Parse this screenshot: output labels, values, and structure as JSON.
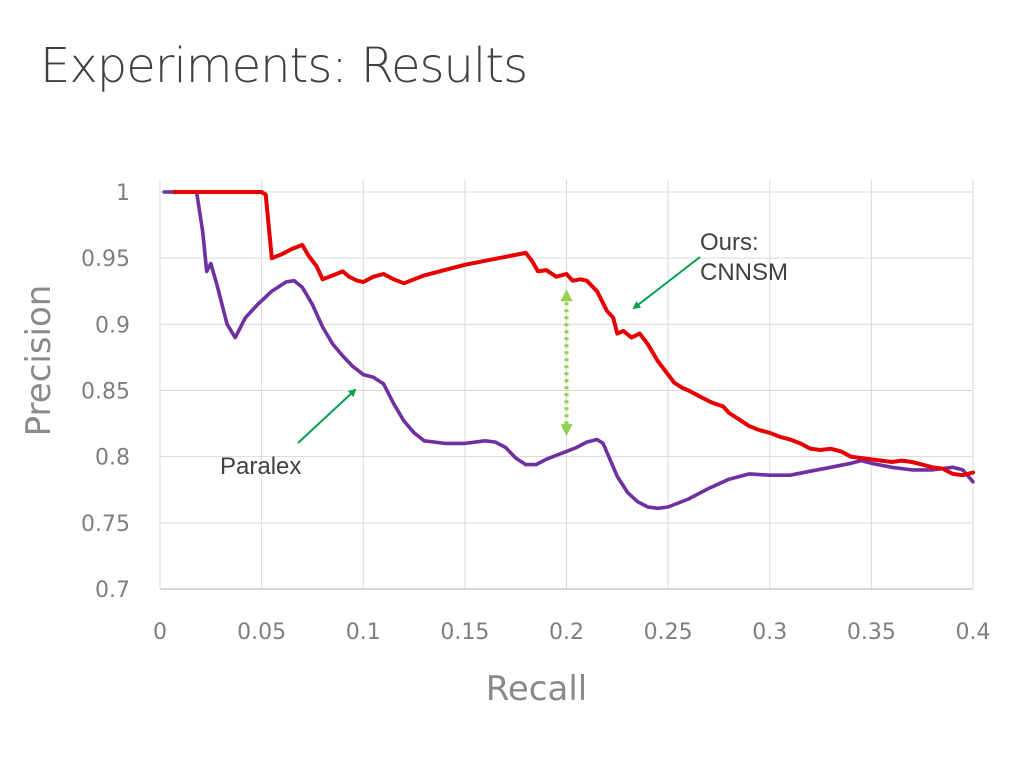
{
  "slide": {
    "title": "Experiments: Results"
  },
  "chart_data": {
    "type": "line",
    "title": "",
    "xlabel": "Recall",
    "ylabel": "Precision",
    "xlim": [
      0,
      0.4
    ],
    "ylim": [
      0.7,
      1.0
    ],
    "xticks": [
      "0",
      "0.05",
      "0.1",
      "0.15",
      "0.2",
      "0.25",
      "0.3",
      "0.35",
      "0.4"
    ],
    "yticks": [
      "0.7",
      "0.75",
      "0.8",
      "0.85",
      "0.9",
      "0.95",
      "1"
    ],
    "grid": true,
    "legend": "none",
    "colors": {
      "ours": "#e60000",
      "paralex": "#7030a0",
      "gap_arrow": "#92d050",
      "annotation_arrow": "#00a050",
      "grid": "#d9d9d9"
    },
    "series": [
      {
        "key": "ours",
        "x": [
          0.007,
          0.02,
          0.05,
          0.052,
          0.055,
          0.06,
          0.065,
          0.07,
          0.073,
          0.077,
          0.08,
          0.085,
          0.09,
          0.093,
          0.097,
          0.1,
          0.105,
          0.11,
          0.115,
          0.12,
          0.125,
          0.13,
          0.14,
          0.15,
          0.16,
          0.17,
          0.18,
          0.183,
          0.186,
          0.19,
          0.195,
          0.2,
          0.203,
          0.207,
          0.21,
          0.215,
          0.22,
          0.223,
          0.225,
          0.228,
          0.232,
          0.236,
          0.24,
          0.245,
          0.25,
          0.253,
          0.257,
          0.26,
          0.265,
          0.27,
          0.273,
          0.277,
          0.28,
          0.285,
          0.29,
          0.295,
          0.3,
          0.305,
          0.31,
          0.315,
          0.32,
          0.325,
          0.33,
          0.335,
          0.34,
          0.345,
          0.35,
          0.355,
          0.36,
          0.365,
          0.37,
          0.375,
          0.38,
          0.385,
          0.39,
          0.395,
          0.4
        ],
        "y": [
          1.0,
          1.0,
          1.0,
          0.998,
          0.95,
          0.953,
          0.957,
          0.96,
          0.952,
          0.944,
          0.934,
          0.937,
          0.94,
          0.936,
          0.933,
          0.932,
          0.936,
          0.938,
          0.934,
          0.931,
          0.934,
          0.937,
          0.941,
          0.945,
          0.948,
          0.951,
          0.954,
          0.948,
          0.94,
          0.941,
          0.936,
          0.938,
          0.933,
          0.934,
          0.933,
          0.925,
          0.91,
          0.905,
          0.893,
          0.895,
          0.89,
          0.893,
          0.885,
          0.872,
          0.862,
          0.856,
          0.852,
          0.85,
          0.846,
          0.842,
          0.84,
          0.838,
          0.833,
          0.828,
          0.823,
          0.82,
          0.818,
          0.815,
          0.813,
          0.81,
          0.806,
          0.805,
          0.806,
          0.804,
          0.8,
          0.799,
          0.798,
          0.797,
          0.796,
          0.797,
          0.796,
          0.794,
          0.792,
          0.791,
          0.787,
          0.786,
          0.788
        ]
      },
      {
        "key": "paralex",
        "x": [
          0.002,
          0.018,
          0.021,
          0.023,
          0.025,
          0.028,
          0.033,
          0.037,
          0.042,
          0.048,
          0.055,
          0.062,
          0.066,
          0.07,
          0.075,
          0.08,
          0.085,
          0.09,
          0.095,
          0.1,
          0.105,
          0.11,
          0.115,
          0.12,
          0.125,
          0.13,
          0.14,
          0.15,
          0.16,
          0.165,
          0.17,
          0.175,
          0.18,
          0.185,
          0.19,
          0.195,
          0.2,
          0.205,
          0.21,
          0.215,
          0.218,
          0.22,
          0.225,
          0.23,
          0.235,
          0.24,
          0.245,
          0.25,
          0.26,
          0.27,
          0.28,
          0.29,
          0.3,
          0.31,
          0.32,
          0.33,
          0.34,
          0.345,
          0.35,
          0.36,
          0.37,
          0.38,
          0.39,
          0.395,
          0.4
        ],
        "y": [
          1.0,
          1.0,
          0.97,
          0.94,
          0.946,
          0.93,
          0.9,
          0.89,
          0.905,
          0.915,
          0.925,
          0.932,
          0.933,
          0.928,
          0.915,
          0.898,
          0.885,
          0.876,
          0.868,
          0.862,
          0.86,
          0.855,
          0.84,
          0.827,
          0.818,
          0.812,
          0.81,
          0.81,
          0.812,
          0.811,
          0.807,
          0.799,
          0.794,
          0.794,
          0.798,
          0.801,
          0.804,
          0.807,
          0.811,
          0.813,
          0.81,
          0.803,
          0.785,
          0.773,
          0.766,
          0.762,
          0.761,
          0.762,
          0.768,
          0.776,
          0.783,
          0.787,
          0.786,
          0.786,
          0.789,
          0.792,
          0.795,
          0.797,
          0.795,
          0.792,
          0.79,
          0.79,
          0.792,
          0.79,
          0.781
        ]
      }
    ],
    "annotations": [
      {
        "key": "ours_label",
        "lines": [
          "Ours:",
          "CNNSM"
        ]
      },
      {
        "key": "paralex_label",
        "lines": [
          "Paralex"
        ]
      }
    ],
    "gap_marker": {
      "x": 0.2,
      "y_top": 0.931,
      "y_bottom": 0.811
    }
  }
}
